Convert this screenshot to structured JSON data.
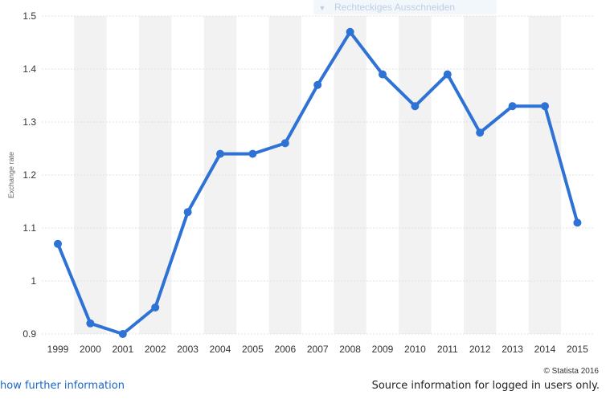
{
  "chart_data": {
    "type": "line",
    "title": "",
    "xlabel": "",
    "ylabel": "Exchange rate",
    "categories": [
      "1999",
      "2000",
      "2001",
      "2002",
      "2003",
      "2004",
      "2005",
      "2006",
      "2007",
      "2008",
      "2009",
      "2010",
      "2011",
      "2012",
      "2013",
      "2014",
      "2015"
    ],
    "series": [
      {
        "values": [
          1.07,
          0.92,
          0.9,
          0.95,
          1.13,
          1.24,
          1.24,
          1.26,
          1.37,
          1.47,
          1.39,
          1.33,
          1.39,
          1.28,
          1.33,
          1.33,
          1.11
        ]
      }
    ],
    "ylim": [
      0.9,
      1.5
    ],
    "yticks": [
      0.9,
      1,
      1.1,
      1.2,
      1.3,
      1.4,
      1.5
    ],
    "ytick_labels": [
      "0.9",
      "1",
      "1.1",
      "1.2",
      "1.3",
      "1.4",
      "1.5"
    ],
    "grid": "horizontal",
    "legend": "none",
    "colors": {
      "line": "#2e72d6",
      "band": "#f2f2f2",
      "grid": "#e0e0e0"
    }
  },
  "credit": "© Statista 2016",
  "tooltip_ghost": {
    "label": "Rechteckiges Ausschneiden"
  },
  "footer": {
    "more_link": "how further information",
    "source_note": "Source information for logged in users only."
  }
}
